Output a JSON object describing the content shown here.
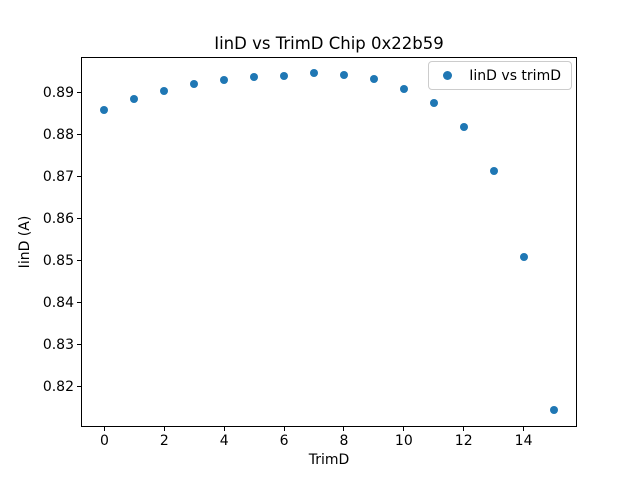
{
  "chart_data": {
    "type": "scatter",
    "title": "IinD vs TrimD Chip 0x22b59",
    "xlabel": "TrimD",
    "ylabel": "IinD (A)",
    "legend": {
      "label": "IinD vs trimD",
      "position": "upper right"
    },
    "series": [
      {
        "name": "IinD vs trimD",
        "x": [
          0,
          1,
          2,
          3,
          4,
          5,
          6,
          7,
          8,
          9,
          10,
          11,
          12,
          13,
          14,
          15
        ],
        "y": [
          0.886,
          0.8885,
          0.8905,
          0.8922,
          0.8931,
          0.8937,
          0.8941,
          0.8948,
          0.8942,
          0.8933,
          0.891,
          0.8876,
          0.8818,
          0.8713,
          0.851,
          0.8145
        ]
      }
    ],
    "xlim": [
      -0.75,
      15.75
    ],
    "ylim": [
      0.8107,
      0.8983
    ],
    "xticks": [
      0,
      2,
      4,
      6,
      8,
      10,
      12,
      14
    ],
    "yticks": [
      0.82,
      0.83,
      0.84,
      0.85,
      0.86,
      0.87,
      0.88,
      0.89
    ],
    "ytick_decimals": 2,
    "grid": false,
    "marker_color": "#1f77b4",
    "axis_color": "#000000",
    "legend_border_color": "#cccccc"
  }
}
